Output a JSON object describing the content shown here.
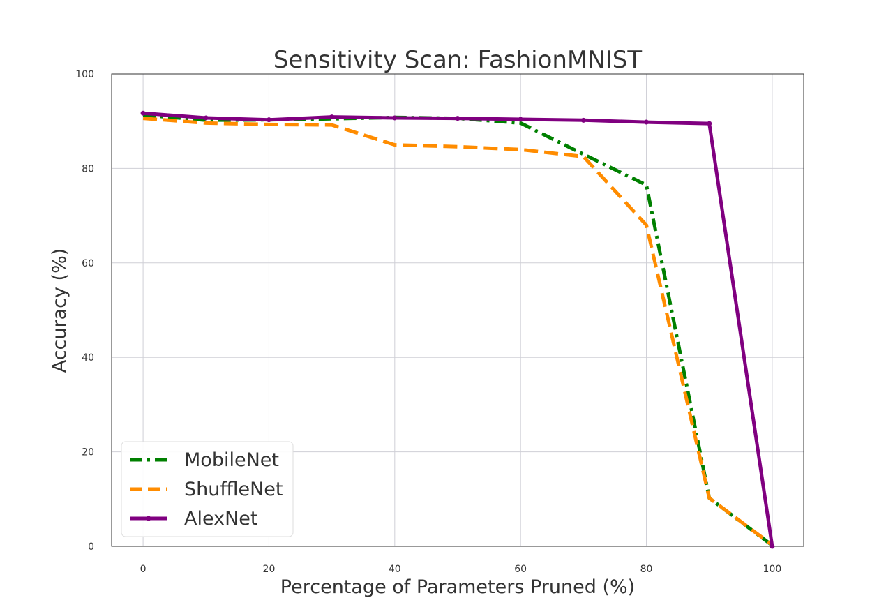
{
  "chart_data": {
    "type": "line",
    "title": "Sensitivity Scan: FashionMNIST",
    "xlabel": "Percentage of Parameters Pruned (%)",
    "ylabel": "Accuracy (%)",
    "xlim": [
      -5,
      105
    ],
    "ylim": [
      0,
      100
    ],
    "xticks": [
      0,
      20,
      40,
      60,
      80,
      100
    ],
    "yticks": [
      0,
      20,
      40,
      60,
      80,
      100
    ],
    "grid": true,
    "legend_position": "lower-left",
    "series": [
      {
        "name": "MobileNet",
        "color": "#008000",
        "style": "dashdot",
        "x": [
          0,
          10,
          20,
          30,
          40,
          50,
          60,
          70,
          80,
          90,
          100
        ],
        "y": [
          91.3,
          90.2,
          90.3,
          90.5,
          90.8,
          90.6,
          89.6,
          83.0,
          76.5,
          10.2,
          0.2
        ]
      },
      {
        "name": "ShuffleNet",
        "color": "#ff8c00",
        "style": "dashed",
        "x": [
          0,
          10,
          20,
          30,
          40,
          50,
          60,
          70,
          80,
          90,
          100
        ],
        "y": [
          90.6,
          89.6,
          89.3,
          89.2,
          85.0,
          84.6,
          84.0,
          82.5,
          68.0,
          10.2,
          0.3
        ]
      },
      {
        "name": "AlexNet",
        "color": "#800080",
        "style": "solid",
        "x": [
          0,
          10,
          20,
          30,
          40,
          50,
          60,
          70,
          80,
          90,
          100
        ],
        "y": [
          91.7,
          90.7,
          90.3,
          90.9,
          90.7,
          90.6,
          90.4,
          90.2,
          89.8,
          89.5,
          0.0
        ]
      }
    ]
  }
}
